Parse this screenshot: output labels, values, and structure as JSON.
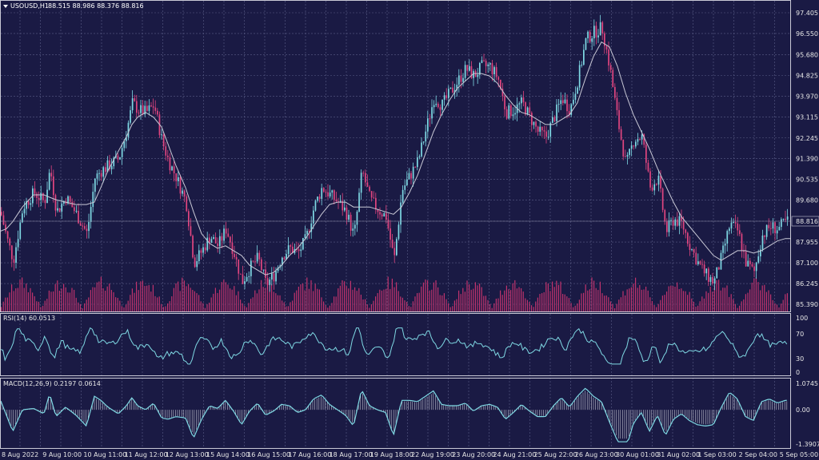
{
  "header": {
    "symbol_label": "USOUSD,H1",
    "ohlc_text": "88.515 88.986 88.376 88.816"
  },
  "chart_data": [
    {
      "type": "candlestick",
      "symbol": "USOUSD",
      "timeframe": "H1",
      "last_price": 88.816,
      "ylim": [
        85.39,
        97.405
      ],
      "y_ticks": [
        "97.405",
        "96.550",
        "95.680",
        "94.825",
        "93.970",
        "93.115",
        "92.245",
        "91.390",
        "90.535",
        "89.680",
        "88.816",
        "87.955",
        "87.100",
        "86.245",
        "85.390"
      ],
      "x_ticks": [
        "8 Aug 2022",
        "9 Aug 10:00",
        "10 Aug 11:00",
        "11 Aug 12:00",
        "12 Aug 13:00",
        "15 Aug 14:00",
        "16 Aug 15:00",
        "17 Aug 16:00",
        "18 Aug 17:00",
        "19 Aug 18:00",
        "22 Aug 19:00",
        "23 Aug 20:00",
        "24 Aug 21:00",
        "25 Aug 22:00",
        "26 Aug 23:00",
        "30 Aug 01:00",
        "31 Aug 02:00",
        "1 Sep 03:00",
        "2 Sep 04:00",
        "5 Sep 05:00"
      ],
      "close_path_x": [
        0,
        8,
        16,
        28,
        42,
        55,
        62,
        70,
        82,
        95,
        108,
        118,
        126,
        135,
        148,
        158,
        165,
        172,
        182,
        192,
        202,
        210,
        220,
        232,
        242,
        252,
        262,
        272,
        282,
        292,
        302,
        312,
        322,
        332,
        342,
        352,
        362,
        372,
        382,
        392,
        402,
        412,
        422,
        432,
        442,
        452,
        462,
        472,
        482,
        492,
        502,
        512,
        522,
        532,
        542,
        552,
        562,
        572,
        582,
        592,
        602,
        612,
        622,
        632,
        642,
        652,
        662,
        672,
        682,
        692,
        702,
        712,
        722,
        732,
        742,
        752,
        762,
        772,
        782,
        792,
        802,
        812,
        822,
        832,
        842,
        852,
        862,
        872,
        882,
        892,
        902,
        912,
        922,
        932,
        942,
        952,
        962,
        972,
        982,
        988
      ],
      "close_path_y": [
        89.2,
        88.1,
        87.2,
        89.4,
        90.0,
        89.6,
        91.0,
        89.2,
        89.8,
        89.1,
        88.3,
        90.6,
        90.9,
        91.1,
        91.4,
        92.6,
        93.7,
        93.4,
        93.3,
        93.6,
        92.1,
        91.3,
        90.6,
        89.6,
        87.1,
        87.6,
        88.2,
        87.8,
        88.5,
        87.5,
        86.3,
        86.9,
        87.3,
        86.2,
        86.6,
        87.4,
        87.7,
        87.5,
        88.1,
        89.4,
        90.2,
        89.9,
        89.6,
        89.2,
        88.2,
        90.9,
        89.7,
        89.3,
        89.0,
        87.2,
        90.1,
        90.7,
        91.3,
        92.6,
        93.9,
        93.6,
        94.1,
        94.6,
        95.1,
        94.8,
        95.2,
        95.2,
        94.7,
        93.3,
        93.4,
        93.7,
        93.1,
        92.5,
        92.3,
        93.1,
        93.9,
        93.4,
        94.7,
        96.3,
        96.6,
        96.8,
        95.1,
        92.9,
        91.1,
        92.2,
        92.3,
        90.2,
        90.6,
        88.4,
        88.9,
        88.7,
        87.8,
        87.1,
        86.6,
        86.3,
        87.4,
        88.7,
        88.4,
        87.1,
        86.7,
        88.2,
        88.6,
        88.5,
        88.8,
        88.816
      ],
      "ma_path_y": [
        88.4,
        88.5,
        88.8,
        89.4,
        89.9,
        89.9,
        89.8,
        89.7,
        89.6,
        89.5,
        89.5,
        89.6,
        90.2,
        90.9,
        91.7,
        92.3,
        92.8,
        93.1,
        93.3,
        93.1,
        92.7,
        92.0,
        91.1,
        90.2,
        89.2,
        88.3,
        87.9,
        87.7,
        87.8,
        87.6,
        87.4,
        87.0,
        86.8,
        86.6,
        86.7,
        87.0,
        87.4,
        87.7,
        88.1,
        88.6,
        89.1,
        89.5,
        89.6,
        89.6,
        89.4,
        89.4,
        89.4,
        89.3,
        89.2,
        89.1,
        89.4,
        90.0,
        90.7,
        91.6,
        92.5,
        93.2,
        93.8,
        94.3,
        94.6,
        94.9,
        94.9,
        94.8,
        94.5,
        94.0,
        93.6,
        93.3,
        93.2,
        93.0,
        92.8,
        92.8,
        93.0,
        93.2,
        93.7,
        94.7,
        95.6,
        96.2,
        96.0,
        95.2,
        94.1,
        93.2,
        92.5,
        91.8,
        91.0,
        90.3,
        89.6,
        89.0,
        88.6,
        88.2,
        87.8,
        87.4,
        87.2,
        87.4,
        87.6,
        87.6,
        87.5,
        87.6,
        87.8,
        88.0,
        88.1,
        88.1
      ]
    },
    {
      "type": "line",
      "name": "RSI(14)",
      "label": "RSI(14) 60.0513",
      "value": 60.0513,
      "ylim": [
        0,
        100
      ],
      "y_ticks": [
        "100",
        "70",
        "30",
        "0"
      ],
      "levels": [
        70,
        30
      ]
    },
    {
      "type": "histogram_line",
      "name": "MACD(12,26,9)",
      "label": "MACD(12,26,9) 0.2197 0.0614",
      "values": [
        0.2197,
        0.0614
      ],
      "ylim": [
        -1.3907,
        1.0745
      ],
      "y_ticks": [
        "1.0745",
        "0.00",
        "-1.3907"
      ]
    }
  ],
  "price_label": "88.816",
  "rsi_scale": {
    "top": "100",
    "l70": "70",
    "l30": "30",
    "bottom": "0"
  },
  "macd_scale": {
    "top": "1.0745",
    "mid": "0.00",
    "bottom": "-1.3907"
  },
  "colors": {
    "background": "#1a1a44",
    "bull": "#7fd9e4",
    "bear": "#e0457f",
    "volume": "#c0336d",
    "ma": "#c9c9d6",
    "rsi": "#7fd9e4",
    "macd_line": "#7fd9e4",
    "macd_hist": "#c9c9d6",
    "grid": "#5a5d86"
  }
}
